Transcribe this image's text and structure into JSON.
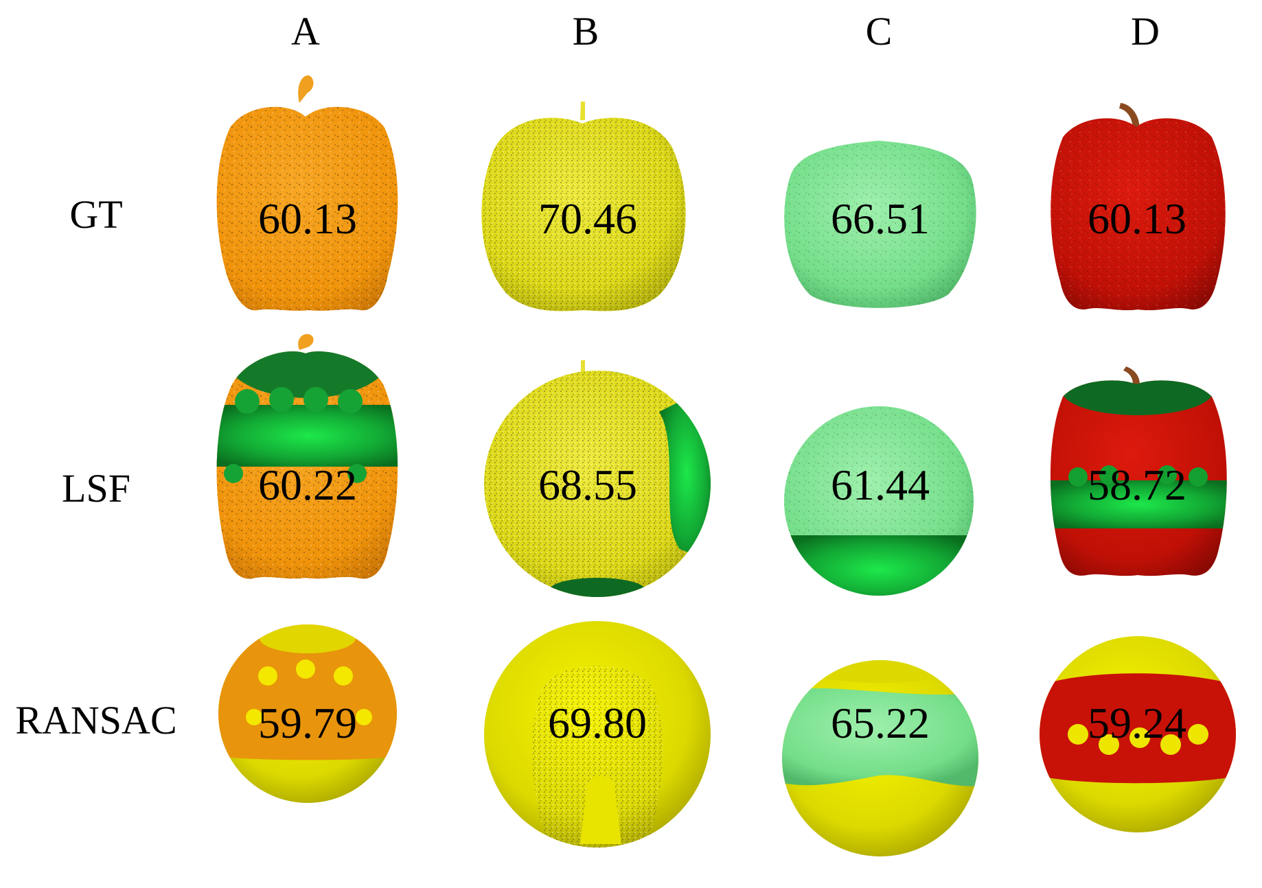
{
  "columns": [
    "A",
    "B",
    "C",
    "D"
  ],
  "rows": [
    {
      "label": "GT",
      "values": [
        "60.13",
        "70.46",
        "66.51",
        "60.13"
      ]
    },
    {
      "label": "LSF",
      "values": [
        "60.22",
        "68.55",
        "61.44",
        "58.72"
      ]
    },
    {
      "label": "RANSAC",
      "values": [
        "59.79",
        "69.80",
        "65.22",
        "59.24"
      ]
    }
  ],
  "colors": {
    "orange": "#f39a0e",
    "yellow": "#e6e214",
    "light_green": "#7fe594",
    "red": "#cc1208",
    "fit_green": "#0f8f2a",
    "fit_yellow": "#e4e200"
  }
}
